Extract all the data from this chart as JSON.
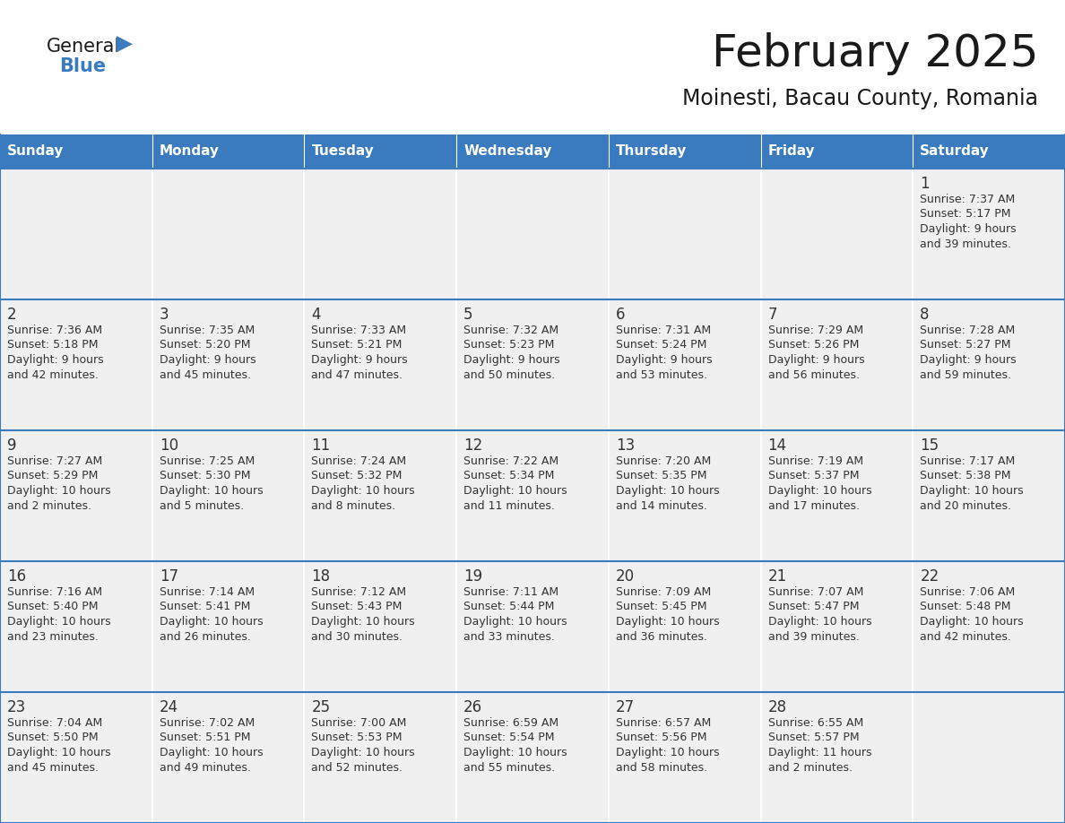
{
  "title": "February 2025",
  "subtitle": "Moinesti, Bacau County, Romania",
  "days_of_week": [
    "Sunday",
    "Monday",
    "Tuesday",
    "Wednesday",
    "Thursday",
    "Friday",
    "Saturday"
  ],
  "header_bg": "#3a7abf",
  "header_text": "#ffffff",
  "cell_bg": "#f0f0f0",
  "border_color": "#3a7abf",
  "day_number_color": "#333333",
  "text_color": "#333333",
  "title_color": "#1a1a1a",
  "logo_general_color": "#1a1a1a",
  "logo_blue_color": "#3a7abf",
  "calendar": [
    [
      null,
      null,
      null,
      null,
      null,
      null,
      {
        "day": 1,
        "sunrise": "7:37 AM",
        "sunset": "5:17 PM",
        "daylight": "9 hours",
        "daylight2": "and 39 minutes."
      }
    ],
    [
      {
        "day": 2,
        "sunrise": "7:36 AM",
        "sunset": "5:18 PM",
        "daylight": "9 hours",
        "daylight2": "and 42 minutes."
      },
      {
        "day": 3,
        "sunrise": "7:35 AM",
        "sunset": "5:20 PM",
        "daylight": "9 hours",
        "daylight2": "and 45 minutes."
      },
      {
        "day": 4,
        "sunrise": "7:33 AM",
        "sunset": "5:21 PM",
        "daylight": "9 hours",
        "daylight2": "and 47 minutes."
      },
      {
        "day": 5,
        "sunrise": "7:32 AM",
        "sunset": "5:23 PM",
        "daylight": "9 hours",
        "daylight2": "and 50 minutes."
      },
      {
        "day": 6,
        "sunrise": "7:31 AM",
        "sunset": "5:24 PM",
        "daylight": "9 hours",
        "daylight2": "and 53 minutes."
      },
      {
        "day": 7,
        "sunrise": "7:29 AM",
        "sunset": "5:26 PM",
        "daylight": "9 hours",
        "daylight2": "and 56 minutes."
      },
      {
        "day": 8,
        "sunrise": "7:28 AM",
        "sunset": "5:27 PM",
        "daylight": "9 hours",
        "daylight2": "and 59 minutes."
      }
    ],
    [
      {
        "day": 9,
        "sunrise": "7:27 AM",
        "sunset": "5:29 PM",
        "daylight": "10 hours",
        "daylight2": "and 2 minutes."
      },
      {
        "day": 10,
        "sunrise": "7:25 AM",
        "sunset": "5:30 PM",
        "daylight": "10 hours",
        "daylight2": "and 5 minutes."
      },
      {
        "day": 11,
        "sunrise": "7:24 AM",
        "sunset": "5:32 PM",
        "daylight": "10 hours",
        "daylight2": "and 8 minutes."
      },
      {
        "day": 12,
        "sunrise": "7:22 AM",
        "sunset": "5:34 PM",
        "daylight": "10 hours",
        "daylight2": "and 11 minutes."
      },
      {
        "day": 13,
        "sunrise": "7:20 AM",
        "sunset": "5:35 PM",
        "daylight": "10 hours",
        "daylight2": "and 14 minutes."
      },
      {
        "day": 14,
        "sunrise": "7:19 AM",
        "sunset": "5:37 PM",
        "daylight": "10 hours",
        "daylight2": "and 17 minutes."
      },
      {
        "day": 15,
        "sunrise": "7:17 AM",
        "sunset": "5:38 PM",
        "daylight": "10 hours",
        "daylight2": "and 20 minutes."
      }
    ],
    [
      {
        "day": 16,
        "sunrise": "7:16 AM",
        "sunset": "5:40 PM",
        "daylight": "10 hours",
        "daylight2": "and 23 minutes."
      },
      {
        "day": 17,
        "sunrise": "7:14 AM",
        "sunset": "5:41 PM",
        "daylight": "10 hours",
        "daylight2": "and 26 minutes."
      },
      {
        "day": 18,
        "sunrise": "7:12 AM",
        "sunset": "5:43 PM",
        "daylight": "10 hours",
        "daylight2": "and 30 minutes."
      },
      {
        "day": 19,
        "sunrise": "7:11 AM",
        "sunset": "5:44 PM",
        "daylight": "10 hours",
        "daylight2": "and 33 minutes."
      },
      {
        "day": 20,
        "sunrise": "7:09 AM",
        "sunset": "5:45 PM",
        "daylight": "10 hours",
        "daylight2": "and 36 minutes."
      },
      {
        "day": 21,
        "sunrise": "7:07 AM",
        "sunset": "5:47 PM",
        "daylight": "10 hours",
        "daylight2": "and 39 minutes."
      },
      {
        "day": 22,
        "sunrise": "7:06 AM",
        "sunset": "5:48 PM",
        "daylight": "10 hours",
        "daylight2": "and 42 minutes."
      }
    ],
    [
      {
        "day": 23,
        "sunrise": "7:04 AM",
        "sunset": "5:50 PM",
        "daylight": "10 hours",
        "daylight2": "and 45 minutes."
      },
      {
        "day": 24,
        "sunrise": "7:02 AM",
        "sunset": "5:51 PM",
        "daylight": "10 hours",
        "daylight2": "and 49 minutes."
      },
      {
        "day": 25,
        "sunrise": "7:00 AM",
        "sunset": "5:53 PM",
        "daylight": "10 hours",
        "daylight2": "and 52 minutes."
      },
      {
        "day": 26,
        "sunrise": "6:59 AM",
        "sunset": "5:54 PM",
        "daylight": "10 hours",
        "daylight2": "and 55 minutes."
      },
      {
        "day": 27,
        "sunrise": "6:57 AM",
        "sunset": "5:56 PM",
        "daylight": "10 hours",
        "daylight2": "and 58 minutes."
      },
      {
        "day": 28,
        "sunrise": "6:55 AM",
        "sunset": "5:57 PM",
        "daylight": "11 hours",
        "daylight2": "and 2 minutes."
      },
      null
    ]
  ]
}
